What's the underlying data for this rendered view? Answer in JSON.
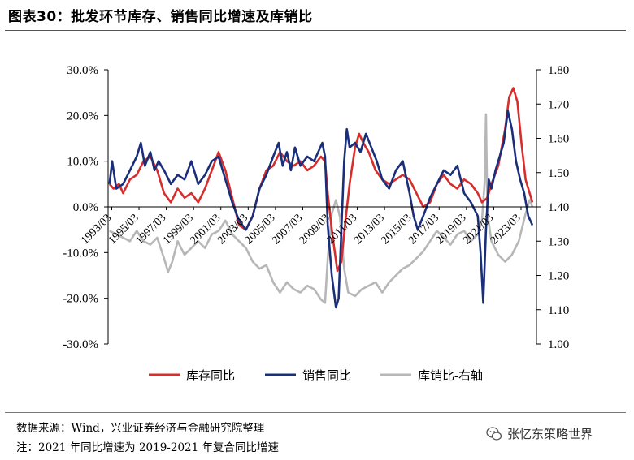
{
  "title": "图表30：批发环节库存、销售同比增速及库销比",
  "footer": {
    "source": "数据来源：Wind，兴业证券经济与金融研究院整理",
    "note": "注：2021 年同比增速为 2019-2021 年复合同比增速"
  },
  "watermark": {
    "text": "张忆东策略世界",
    "icon": "wechat-icon"
  },
  "chart_data": {
    "type": "line",
    "title": "",
    "x_ticks": [
      "1993/03",
      "1995/03",
      "1997/03",
      "1999/03",
      "2001/03",
      "2003/03",
      "2005/03",
      "2007/03",
      "2009/03",
      "2011/03",
      "2013/03",
      "2015/03",
      "2017/03",
      "2019/03",
      "2021/03",
      "2023/03"
    ],
    "x_range": [
      1992.9,
      2024.3
    ],
    "y_left": {
      "ticks": [
        "30.0%",
        "20.0%",
        "10.0%",
        "0.0%",
        "-10.0%",
        "-20.0%",
        "-30.0%"
      ],
      "range": [
        -30,
        30
      ],
      "unit": "%"
    },
    "y_right": {
      "ticks": [
        "1.80",
        "1.70",
        "1.60",
        "1.50",
        "1.40",
        "1.30",
        "1.20",
        "1.10",
        "1.00"
      ],
      "range": [
        1.0,
        1.8
      ]
    },
    "legend_position": "bottom",
    "series": [
      {
        "name": "库存同比",
        "color": "#d62d2d",
        "axis": "left",
        "points": [
          [
            1993.0,
            5
          ],
          [
            1993.3,
            4
          ],
          [
            1993.7,
            5
          ],
          [
            1994.0,
            3
          ],
          [
            1994.5,
            6
          ],
          [
            1995.0,
            7
          ],
          [
            1995.5,
            10
          ],
          [
            1996.0,
            11
          ],
          [
            1996.5,
            8
          ],
          [
            1997.0,
            3
          ],
          [
            1997.5,
            1
          ],
          [
            1998.0,
            4
          ],
          [
            1998.5,
            2
          ],
          [
            1999.0,
            3
          ],
          [
            1999.5,
            1
          ],
          [
            2000.0,
            4
          ],
          [
            2000.5,
            8
          ],
          [
            2001.0,
            12
          ],
          [
            2001.5,
            8
          ],
          [
            2002.0,
            2
          ],
          [
            2002.5,
            -4
          ],
          [
            2003.0,
            -5
          ],
          [
            2003.5,
            -2
          ],
          [
            2004.0,
            4
          ],
          [
            2004.5,
            8
          ],
          [
            2005.0,
            9
          ],
          [
            2005.5,
            12
          ],
          [
            2006.0,
            10
          ],
          [
            2006.5,
            9
          ],
          [
            2007.0,
            10
          ],
          [
            2007.5,
            8
          ],
          [
            2008.0,
            9
          ],
          [
            2008.5,
            11
          ],
          [
            2008.8,
            10
          ],
          [
            2009.0,
            3
          ],
          [
            2009.3,
            -5
          ],
          [
            2009.7,
            -14
          ],
          [
            2010.0,
            -12
          ],
          [
            2010.3,
            -3
          ],
          [
            2010.6,
            5
          ],
          [
            2011.0,
            13
          ],
          [
            2011.3,
            16
          ],
          [
            2011.6,
            14
          ],
          [
            2012.0,
            12
          ],
          [
            2012.5,
            8
          ],
          [
            2013.0,
            6
          ],
          [
            2013.5,
            5
          ],
          [
            2014.0,
            6
          ],
          [
            2014.5,
            7
          ],
          [
            2015.0,
            6
          ],
          [
            2015.5,
            3
          ],
          [
            2016.0,
            0
          ],
          [
            2016.5,
            1
          ],
          [
            2017.0,
            5
          ],
          [
            2017.5,
            7
          ],
          [
            2018.0,
            5
          ],
          [
            2018.5,
            4
          ],
          [
            2019.0,
            6
          ],
          [
            2019.5,
            5
          ],
          [
            2020.0,
            3
          ],
          [
            2020.3,
            1
          ],
          [
            2020.7,
            2
          ],
          [
            2021.0,
            5
          ],
          [
            2021.5,
            9
          ],
          [
            2022.0,
            17
          ],
          [
            2022.3,
            24
          ],
          [
            2022.6,
            26
          ],
          [
            2022.9,
            23
          ],
          [
            2023.2,
            14
          ],
          [
            2023.5,
            6
          ],
          [
            2023.8,
            3
          ],
          [
            2024.0,
            1
          ]
        ]
      },
      {
        "name": "销售同比",
        "color": "#1a2f7a",
        "axis": "left",
        "points": [
          [
            1993.0,
            5
          ],
          [
            1993.2,
            10
          ],
          [
            1993.5,
            4
          ],
          [
            1994.0,
            5
          ],
          [
            1994.5,
            8
          ],
          [
            1995.0,
            11
          ],
          [
            1995.3,
            14
          ],
          [
            1995.6,
            9
          ],
          [
            1996.0,
            12
          ],
          [
            1996.3,
            8
          ],
          [
            1996.6,
            10
          ],
          [
            1997.0,
            8
          ],
          [
            1997.5,
            5
          ],
          [
            1998.0,
            7
          ],
          [
            1998.5,
            6
          ],
          [
            1999.0,
            10
          ],
          [
            1999.5,
            5
          ],
          [
            2000.0,
            7
          ],
          [
            2000.5,
            10
          ],
          [
            2001.0,
            11
          ],
          [
            2001.5,
            6
          ],
          [
            2002.0,
            1
          ],
          [
            2002.5,
            -3
          ],
          [
            2003.0,
            -5
          ],
          [
            2003.5,
            -2
          ],
          [
            2004.0,
            4
          ],
          [
            2004.5,
            7
          ],
          [
            2005.0,
            11
          ],
          [
            2005.4,
            14
          ],
          [
            2005.7,
            9
          ],
          [
            2006.0,
            12
          ],
          [
            2006.3,
            8
          ],
          [
            2006.6,
            13
          ],
          [
            2007.0,
            9
          ],
          [
            2007.5,
            11
          ],
          [
            2008.0,
            10
          ],
          [
            2008.3,
            12
          ],
          [
            2008.6,
            14
          ],
          [
            2008.8,
            11
          ],
          [
            2009.0,
            -4
          ],
          [
            2009.3,
            -15
          ],
          [
            2009.6,
            -22
          ],
          [
            2009.8,
            -20
          ],
          [
            2010.0,
            -5
          ],
          [
            2010.2,
            10
          ],
          [
            2010.4,
            17
          ],
          [
            2010.6,
            13
          ],
          [
            2011.0,
            14
          ],
          [
            2011.4,
            12
          ],
          [
            2011.8,
            16
          ],
          [
            2012.2,
            13
          ],
          [
            2012.6,
            10
          ],
          [
            2013.0,
            6
          ],
          [
            2013.5,
            4
          ],
          [
            2014.0,
            8
          ],
          [
            2014.5,
            10
          ],
          [
            2015.0,
            3
          ],
          [
            2015.3,
            -2
          ],
          [
            2015.6,
            -5
          ],
          [
            2016.0,
            -2
          ],
          [
            2016.5,
            2
          ],
          [
            2017.0,
            5
          ],
          [
            2017.5,
            8
          ],
          [
            2018.0,
            7
          ],
          [
            2018.5,
            9
          ],
          [
            2019.0,
            3
          ],
          [
            2019.5,
            1
          ],
          [
            2020.0,
            -2
          ],
          [
            2020.2,
            -10
          ],
          [
            2020.4,
            -21
          ],
          [
            2020.6,
            -5
          ],
          [
            2020.8,
            6
          ],
          [
            2021.0,
            4
          ],
          [
            2021.3,
            8
          ],
          [
            2021.6,
            11
          ],
          [
            2021.9,
            14
          ],
          [
            2022.2,
            21
          ],
          [
            2022.5,
            17
          ],
          [
            2022.8,
            10
          ],
          [
            2023.1,
            6
          ],
          [
            2023.4,
            3
          ],
          [
            2023.7,
            -2
          ],
          [
            2024.0,
            -4
          ]
        ]
      },
      {
        "name": "库销比-右轴",
        "color": "#b7b7b7",
        "axis": "right",
        "points": [
          [
            1993.0,
            1.33
          ],
          [
            1993.5,
            1.32
          ],
          [
            1994.0,
            1.31
          ],
          [
            1994.5,
            1.3
          ],
          [
            1995.0,
            1.33
          ],
          [
            1995.5,
            1.3
          ],
          [
            1996.0,
            1.29
          ],
          [
            1996.5,
            1.31
          ],
          [
            1997.0,
            1.25
          ],
          [
            1997.3,
            1.21
          ],
          [
            1997.6,
            1.24
          ],
          [
            1998.0,
            1.3
          ],
          [
            1998.5,
            1.26
          ],
          [
            1999.0,
            1.28
          ],
          [
            1999.5,
            1.3
          ],
          [
            2000.0,
            1.28
          ],
          [
            2000.5,
            1.32
          ],
          [
            2001.0,
            1.33
          ],
          [
            2001.5,
            1.36
          ],
          [
            2002.0,
            1.32
          ],
          [
            2002.5,
            1.3
          ],
          [
            2003.0,
            1.28
          ],
          [
            2003.5,
            1.24
          ],
          [
            2004.0,
            1.22
          ],
          [
            2004.5,
            1.23
          ],
          [
            2005.0,
            1.18
          ],
          [
            2005.5,
            1.15
          ],
          [
            2006.0,
            1.18
          ],
          [
            2006.5,
            1.16
          ],
          [
            2007.0,
            1.15
          ],
          [
            2007.5,
            1.17
          ],
          [
            2008.0,
            1.16
          ],
          [
            2008.5,
            1.13
          ],
          [
            2008.8,
            1.12
          ],
          [
            2009.0,
            1.25
          ],
          [
            2009.3,
            1.38
          ],
          [
            2009.6,
            1.42
          ],
          [
            2009.9,
            1.37
          ],
          [
            2010.2,
            1.22
          ],
          [
            2010.5,
            1.15
          ],
          [
            2011.0,
            1.14
          ],
          [
            2011.5,
            1.16
          ],
          [
            2012.0,
            1.17
          ],
          [
            2012.5,
            1.18
          ],
          [
            2013.0,
            1.15
          ],
          [
            2013.5,
            1.18
          ],
          [
            2014.0,
            1.2
          ],
          [
            2014.5,
            1.22
          ],
          [
            2015.0,
            1.23
          ],
          [
            2015.5,
            1.25
          ],
          [
            2016.0,
            1.27
          ],
          [
            2016.5,
            1.3
          ],
          [
            2017.0,
            1.33
          ],
          [
            2017.5,
            1.31
          ],
          [
            2018.0,
            1.29
          ],
          [
            2018.5,
            1.32
          ],
          [
            2019.0,
            1.33
          ],
          [
            2019.5,
            1.3
          ],
          [
            2020.0,
            1.32
          ],
          [
            2020.3,
            1.36
          ],
          [
            2020.5,
            1.47
          ],
          [
            2020.6,
            1.67
          ],
          [
            2020.7,
            1.38
          ],
          [
            2021.0,
            1.3
          ],
          [
            2021.5,
            1.26
          ],
          [
            2022.0,
            1.24
          ],
          [
            2022.5,
            1.26
          ],
          [
            2023.0,
            1.3
          ],
          [
            2023.5,
            1.38
          ],
          [
            2023.8,
            1.42
          ],
          [
            2024.0,
            1.4
          ]
        ]
      }
    ]
  }
}
